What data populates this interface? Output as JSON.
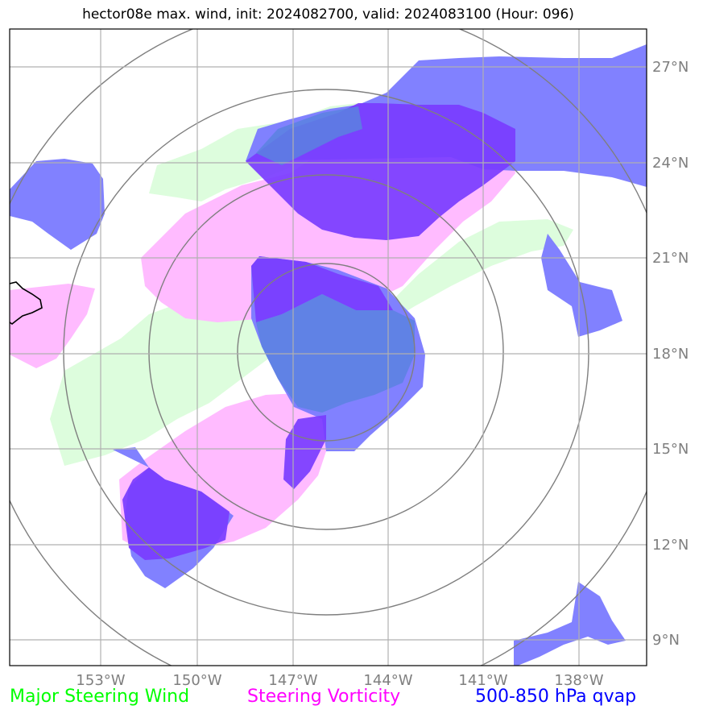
{
  "title": "hector08e max. wind, init: 2024082700, valid: 2024083100 (Hour: 096)",
  "axes": {
    "lon_labels": [
      "153°W",
      "150°W",
      "147°W",
      "144°W",
      "141°W",
      "138°W"
    ],
    "lat_labels": [
      "27°N",
      "24°N",
      "21°N",
      "18°N",
      "15°N",
      "12°N",
      "9°N"
    ]
  },
  "legend": {
    "wind": {
      "label": "Major Steering Wind",
      "color": "#00ff00"
    },
    "vorticity": {
      "label": "Steering Vorticity",
      "color": "#ff00ff"
    },
    "qvap": {
      "label": "500-850 hPa qvap",
      "color": "#0000ff"
    }
  },
  "layer_colors": {
    "wind_fill": "#ddfddd",
    "vorticity_fill": "#ffbbff",
    "qvap_fill": "#7a7aff",
    "qvap_dark": "#7a3cff",
    "coast": "#000000",
    "range_rings": "#7f7f7f",
    "grid": "#b0b0b0"
  }
}
